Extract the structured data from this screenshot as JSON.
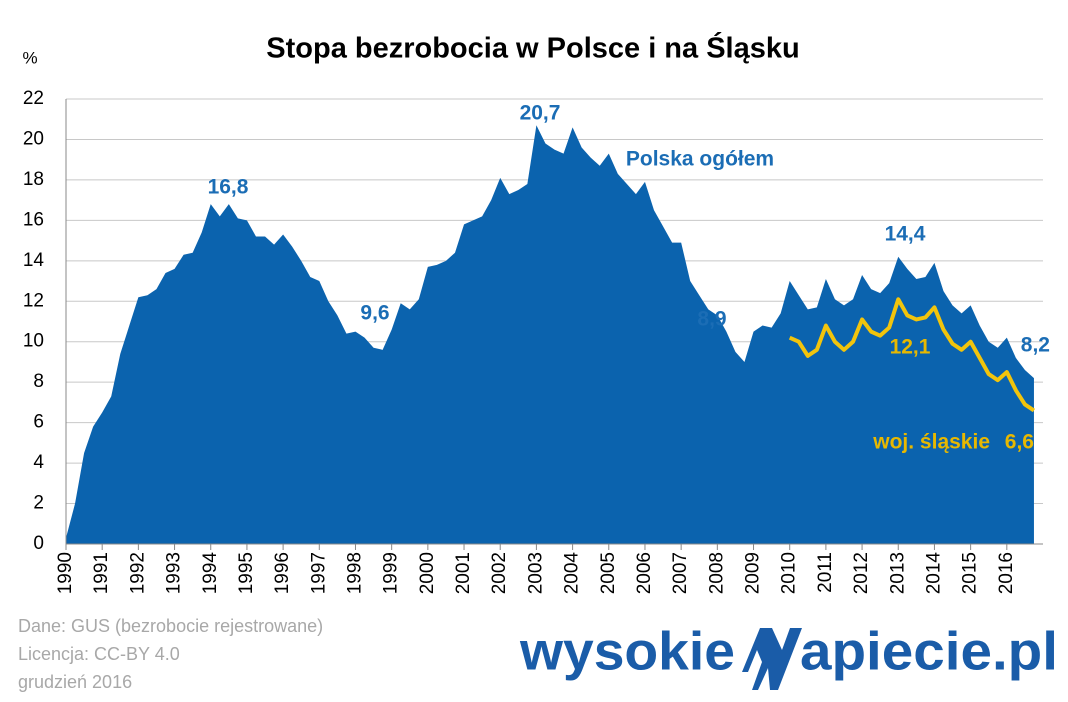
{
  "chart_data": {
    "type": "area",
    "title": "Stopa bezrobocia w Polsce i na Śląsku",
    "y_label": "%",
    "xlim": [
      1990,
      2017
    ],
    "ylim": [
      0,
      22
    ],
    "xticks": [
      1990,
      1991,
      1992,
      1993,
      1994,
      1995,
      1996,
      1997,
      1998,
      1999,
      2000,
      2001,
      2002,
      2003,
      2004,
      2005,
      2006,
      2007,
      2008,
      2009,
      2010,
      2011,
      2012,
      2013,
      2014,
      2015,
      2016
    ],
    "yticks": [
      0,
      2,
      4,
      6,
      8,
      10,
      12,
      14,
      16,
      18,
      20,
      22
    ],
    "grid": true,
    "x": [
      1990,
      1990.25,
      1990.5,
      1990.75,
      1991,
      1991.25,
      1991.5,
      1991.75,
      1992,
      1992.25,
      1992.5,
      1992.75,
      1993,
      1993.25,
      1993.5,
      1993.75,
      1994,
      1994.25,
      1994.5,
      1994.75,
      1995,
      1995.25,
      1995.5,
      1995.75,
      1996,
      1996.25,
      1996.5,
      1996.75,
      1997,
      1997.25,
      1997.5,
      1997.75,
      1998,
      1998.25,
      1998.5,
      1998.75,
      1999,
      1999.25,
      1999.5,
      1999.75,
      2000,
      2000.25,
      2000.5,
      2000.75,
      2001,
      2001.25,
      2001.5,
      2001.75,
      2002,
      2002.25,
      2002.5,
      2002.75,
      2003,
      2003.25,
      2003.5,
      2003.75,
      2004,
      2004.25,
      2004.5,
      2004.75,
      2005,
      2005.25,
      2005.5,
      2005.75,
      2006,
      2006.25,
      2006.5,
      2006.75,
      2007,
      2007.25,
      2007.5,
      2007.75,
      2008,
      2008.25,
      2008.5,
      2008.75,
      2009,
      2009.25,
      2009.5,
      2009.75,
      2010,
      2010.25,
      2010.5,
      2010.75,
      2011,
      2011.25,
      2011.5,
      2011.75,
      2012,
      2012.25,
      2012.5,
      2012.75,
      2013,
      2013.25,
      2013.5,
      2013.75,
      2014,
      2014.25,
      2014.5,
      2014.75,
      2015,
      2015.25,
      2015.5,
      2015.75,
      2016,
      2016.25,
      2016.5,
      2016.75
    ],
    "series": [
      {
        "name": "Polska ogółem",
        "color": "#0b63ae",
        "kind": "area",
        "values": [
          0.3,
          2.0,
          4.5,
          5.8,
          6.5,
          7.3,
          9.4,
          10.8,
          12.2,
          12.3,
          12.6,
          13.4,
          13.6,
          14.3,
          14.4,
          15.4,
          16.8,
          16.2,
          16.8,
          16.1,
          16.0,
          15.2,
          15.2,
          14.8,
          15.3,
          14.7,
          14.0,
          13.2,
          13.0,
          12.0,
          11.3,
          10.4,
          10.5,
          10.2,
          9.7,
          9.6,
          10.6,
          11.9,
          11.6,
          12.1,
          13.7,
          13.8,
          14.0,
          14.4,
          15.8,
          16.0,
          16.2,
          17.0,
          18.1,
          17.3,
          17.5,
          17.8,
          20.7,
          19.8,
          19.5,
          19.3,
          20.6,
          19.6,
          19.1,
          18.7,
          19.3,
          18.3,
          17.8,
          17.3,
          17.9,
          16.5,
          15.7,
          14.9,
          14.9,
          13.0,
          12.3,
          11.6,
          11.3,
          10.5,
          9.5,
          9.0,
          10.5,
          10.8,
          10.7,
          11.4,
          13.0,
          12.3,
          11.6,
          11.7,
          13.1,
          12.1,
          11.8,
          12.1,
          13.3,
          12.6,
          12.4,
          12.9,
          14.2,
          13.6,
          13.1,
          13.2,
          13.9,
          12.5,
          11.8,
          11.4,
          11.8,
          10.8,
          10.0,
          9.7,
          10.2,
          9.2,
          8.6,
          8.2
        ]
      },
      {
        "name": "woj. śląskie",
        "color": "#f2c40c",
        "kind": "line",
        "values": [
          null,
          null,
          null,
          null,
          null,
          null,
          null,
          null,
          null,
          null,
          null,
          null,
          null,
          null,
          null,
          null,
          null,
          null,
          null,
          null,
          null,
          null,
          null,
          null,
          null,
          null,
          null,
          null,
          null,
          null,
          null,
          null,
          null,
          null,
          null,
          null,
          null,
          null,
          null,
          null,
          null,
          null,
          null,
          null,
          null,
          null,
          null,
          null,
          null,
          null,
          null,
          null,
          null,
          null,
          null,
          null,
          null,
          null,
          null,
          null,
          null,
          null,
          null,
          null,
          null,
          null,
          null,
          null,
          null,
          null,
          null,
          null,
          null,
          null,
          null,
          null,
          null,
          null,
          null,
          null,
          10.2,
          10.0,
          9.3,
          9.6,
          10.8,
          10.0,
          9.6,
          10.0,
          11.1,
          10.5,
          10.3,
          10.7,
          12.1,
          11.3,
          11.1,
          11.2,
          11.7,
          10.6,
          9.9,
          9.6,
          10.0,
          9.2,
          8.4,
          8.1,
          8.5,
          7.6,
          6.9,
          6.6
        ]
      }
    ],
    "annotations": [
      "16,8",
      "9,6",
      "20,7",
      "8,9",
      "14,4",
      "12,1",
      "8,2",
      "6,6"
    ]
  },
  "footer": {
    "source": "Dane: GUS (bezrobocie rejestrowane)",
    "license": "Licencja: CC-BY 4.0",
    "date": "grudzień 2016",
    "logo": [
      "wysokie",
      "apiecie.pl"
    ]
  }
}
